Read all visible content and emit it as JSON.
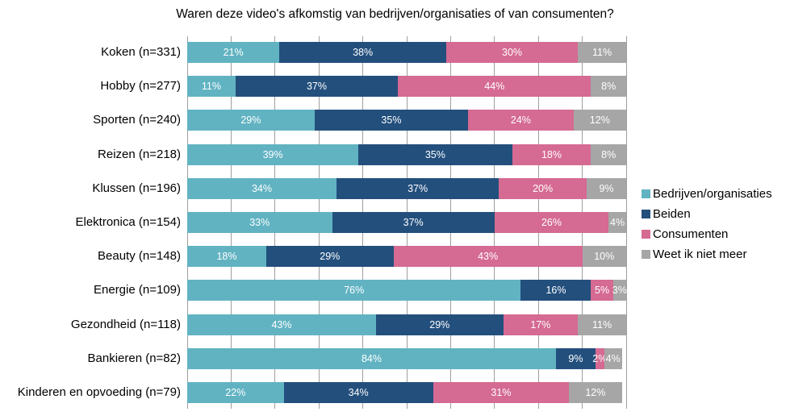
{
  "chart_data": {
    "type": "bar",
    "stacked": true,
    "orientation": "horizontal",
    "title": "Waren deze video's afkomstig van bedrijven/organisaties of van consumenten?",
    "categories": [
      "Koken (n=331)",
      "Hobby (n=277)",
      "Sporten (n=240)",
      "Reizen (n=218)",
      "Klussen (n=196)",
      "Elektronica (n=154)",
      "Beauty (n=148)",
      "Energie (n=109)",
      "Gezondheid (n=118)",
      "Bankieren (n=82)",
      "Kinderen en opvoeding (n=79)"
    ],
    "series": [
      {
        "name": "Bedrijven/organisaties",
        "color": "#61B3C2",
        "values": [
          21,
          11,
          29,
          39,
          34,
          33,
          18,
          76,
          43,
          84,
          22
        ]
      },
      {
        "name": "Beiden",
        "color": "#234F7D",
        "values": [
          38,
          37,
          35,
          35,
          37,
          37,
          29,
          16,
          29,
          9,
          34
        ]
      },
      {
        "name": "Consumenten",
        "color": "#D56A92",
        "values": [
          30,
          44,
          24,
          18,
          20,
          26,
          43,
          5,
          17,
          2,
          31
        ]
      },
      {
        "name": "Weet ik niet meer",
        "color": "#A6A6A6",
        "values": [
          11,
          8,
          12,
          8,
          9,
          4,
          10,
          3,
          11,
          4,
          12
        ]
      }
    ],
    "value_suffix": "%",
    "xlim": [
      0,
      100
    ],
    "gridlines_percent": [
      0,
      10,
      20,
      30,
      40,
      50,
      60,
      70,
      80,
      90,
      100
    ],
    "grid": true,
    "legend_position": "right"
  },
  "colors": {
    "grid": "#9e9e9e",
    "bar_label_text": "#ffffff",
    "text": "#000000",
    "background": "#ffffff"
  }
}
